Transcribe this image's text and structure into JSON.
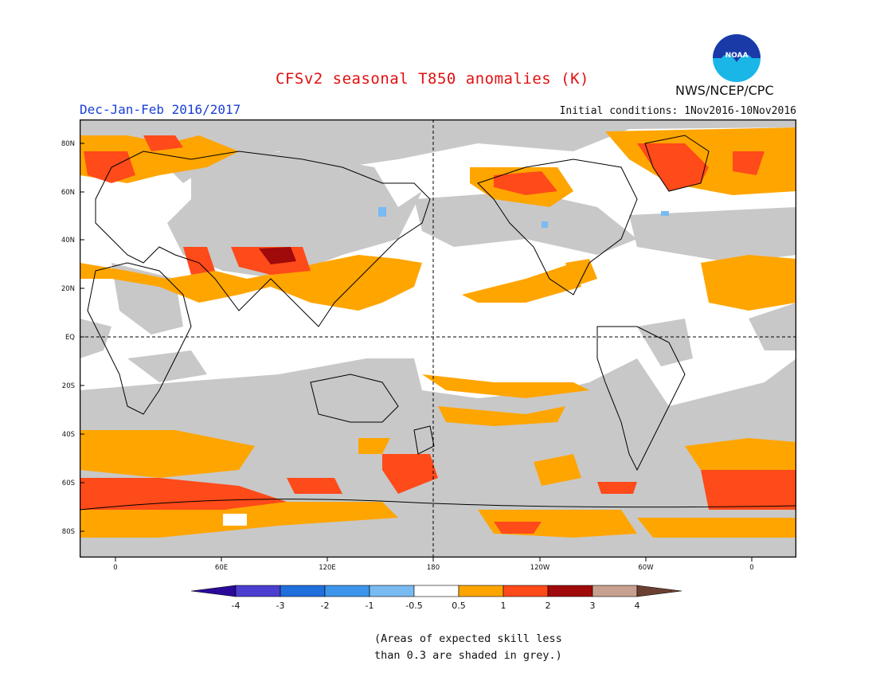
{
  "header": {
    "title": "CFSv2 seasonal T850 anomalies (K)",
    "period": "Dec-Jan-Feb 2016/2017",
    "initial_conditions": "Initial conditions: 1Nov2016-10Nov2016",
    "agency": "NWS/NCEP/CPC",
    "logo_text": "NOAA"
  },
  "map": {
    "projection": "lat-lon",
    "lat_labels": [
      "80N",
      "60N",
      "40N",
      "20N",
      "EQ",
      "20S",
      "40S",
      "60S",
      "80S"
    ],
    "lon_labels": [
      "0",
      "60E",
      "120E",
      "180",
      "120W",
      "60W",
      "0"
    ],
    "skill_mask_color": "#c8c8c8"
  },
  "legend": {
    "labels": [
      "-4",
      "-3",
      "-2",
      "-1",
      "-0.5",
      "0.5",
      "1",
      "2",
      "3",
      "4"
    ],
    "colors": [
      "#2a0a9a",
      "#4a3fcf",
      "#1f6fdc",
      "#3c95ea",
      "#79baf2",
      "#ffffff",
      "#ffa500",
      "#ff4a1a",
      "#a00a0a",
      "#c8a090",
      "#6b4030"
    ]
  },
  "note": {
    "line1": "(Areas of expected skill less",
    "line2": "than 0.3 are shaded in grey.)"
  }
}
